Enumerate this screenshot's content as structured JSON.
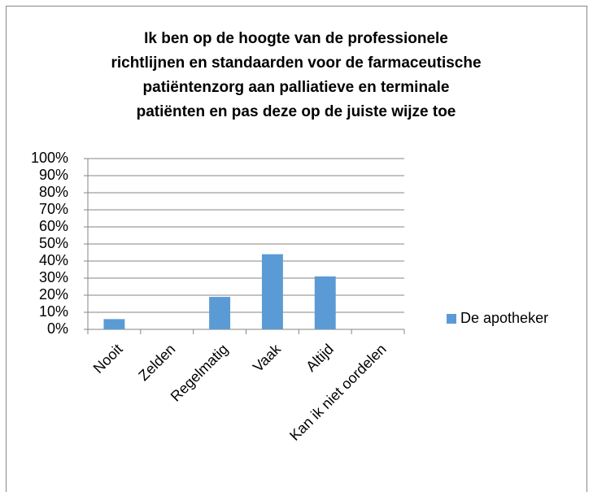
{
  "chart_data": {
    "type": "bar",
    "title": [
      "Ik ben op de hoogte van de professionele",
      "richtlijnen en standaarden voor de farmaceutische",
      "patiëntenzorg aan palliatieve en terminale",
      "patiënten en pas deze op de juiste wijze toe"
    ],
    "categories": [
      "Nooit",
      "Zelden",
      "Regelmatig",
      "Vaak",
      "Altijd",
      "Kan ik niet oordelen"
    ],
    "series": [
      {
        "name": "De apotheker",
        "color": "#5b9bd5",
        "values": [
          6,
          0,
          19,
          44,
          31,
          0
        ]
      }
    ],
    "ylim": [
      0,
      100
    ],
    "yticks": [
      {
        "value": 0,
        "label": "0%"
      },
      {
        "value": 10,
        "label": "10%"
      },
      {
        "value": 20,
        "label": "20%"
      },
      {
        "value": 30,
        "label": "30%"
      },
      {
        "value": 40,
        "label": "40%"
      },
      {
        "value": 50,
        "label": "50%"
      },
      {
        "value": 60,
        "label": "60%"
      },
      {
        "value": 70,
        "label": "70%"
      },
      {
        "value": 80,
        "label": "80%"
      },
      {
        "value": 90,
        "label": "90%"
      },
      {
        "value": 100,
        "label": "100%"
      }
    ],
    "grid": true,
    "legend": "right"
  }
}
